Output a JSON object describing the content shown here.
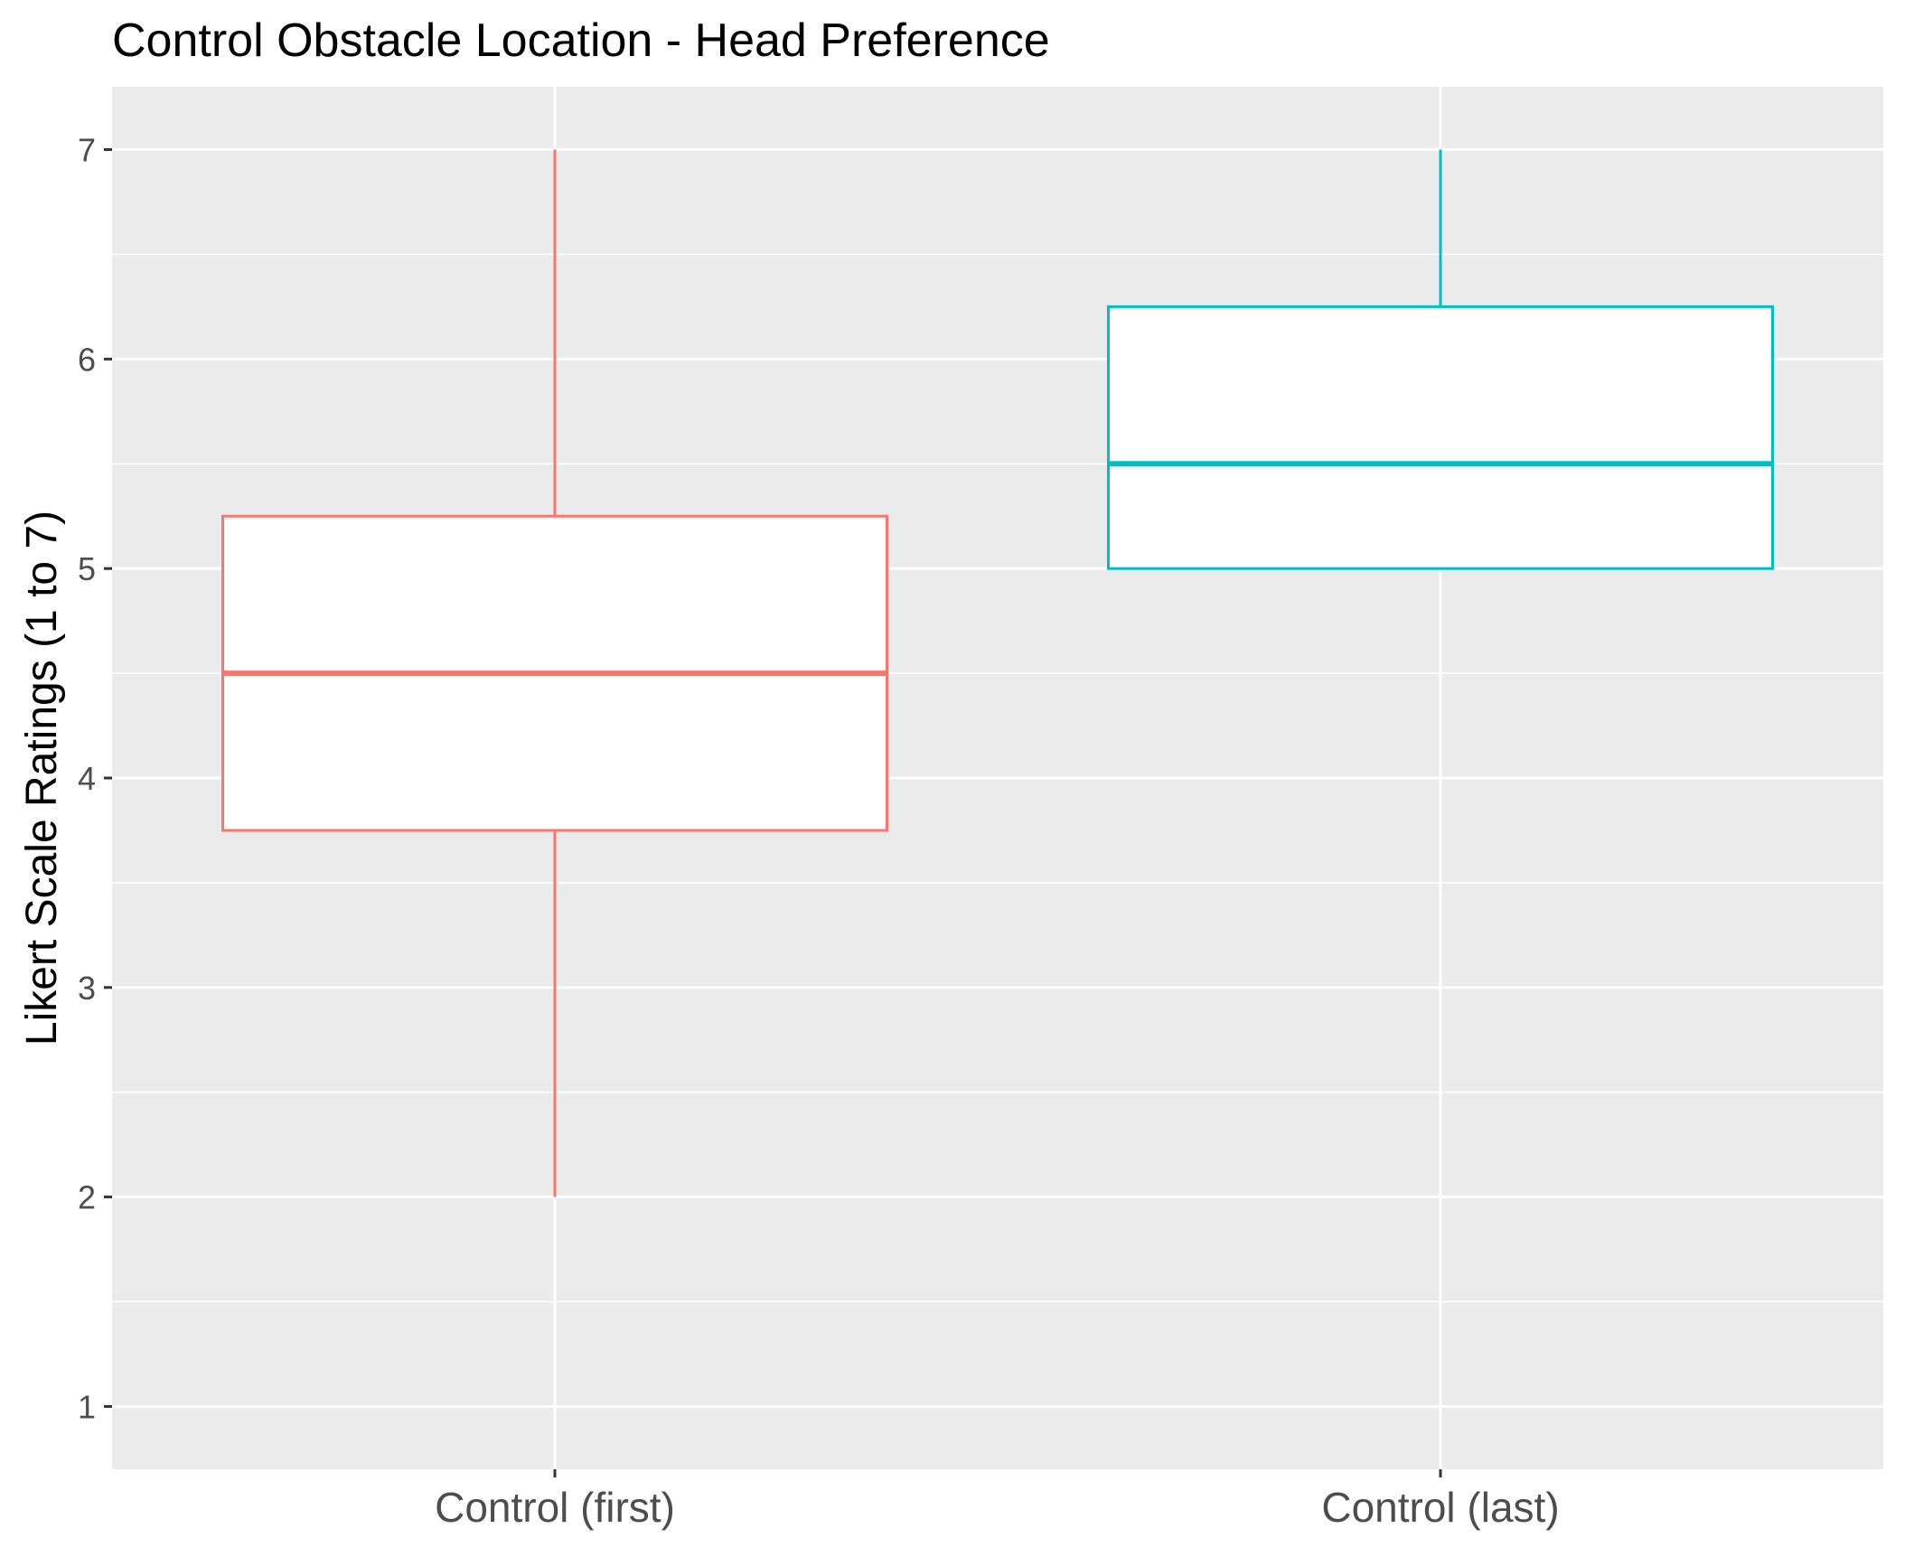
{
  "chart_data": {
    "type": "boxplot",
    "title": "Control Obstacle Location - Head Preference",
    "xlabel": "",
    "ylabel": "Likert Scale Ratings (1 to 7)",
    "ylim": [
      0.7,
      7.3
    ],
    "yticks": [
      1,
      2,
      3,
      4,
      5,
      6,
      7
    ],
    "grid": true,
    "categories": [
      "Control (first)",
      "Control (last)"
    ],
    "boxes": [
      {
        "category": "Control (first)",
        "min": 2,
        "q1": 3.75,
        "median": 4.5,
        "q3": 5.25,
        "max": 7,
        "color": "#F8766D"
      },
      {
        "category": "Control (last)",
        "min": 5,
        "q1": 5,
        "median": 5.5,
        "q3": 6.25,
        "max": 7,
        "color": "#00BFC4"
      }
    ],
    "colors": {
      "panel": "#EBEBEB",
      "grid": "#FFFFFF",
      "axis_text": "#4d4d4d",
      "tick": "#333333"
    }
  }
}
